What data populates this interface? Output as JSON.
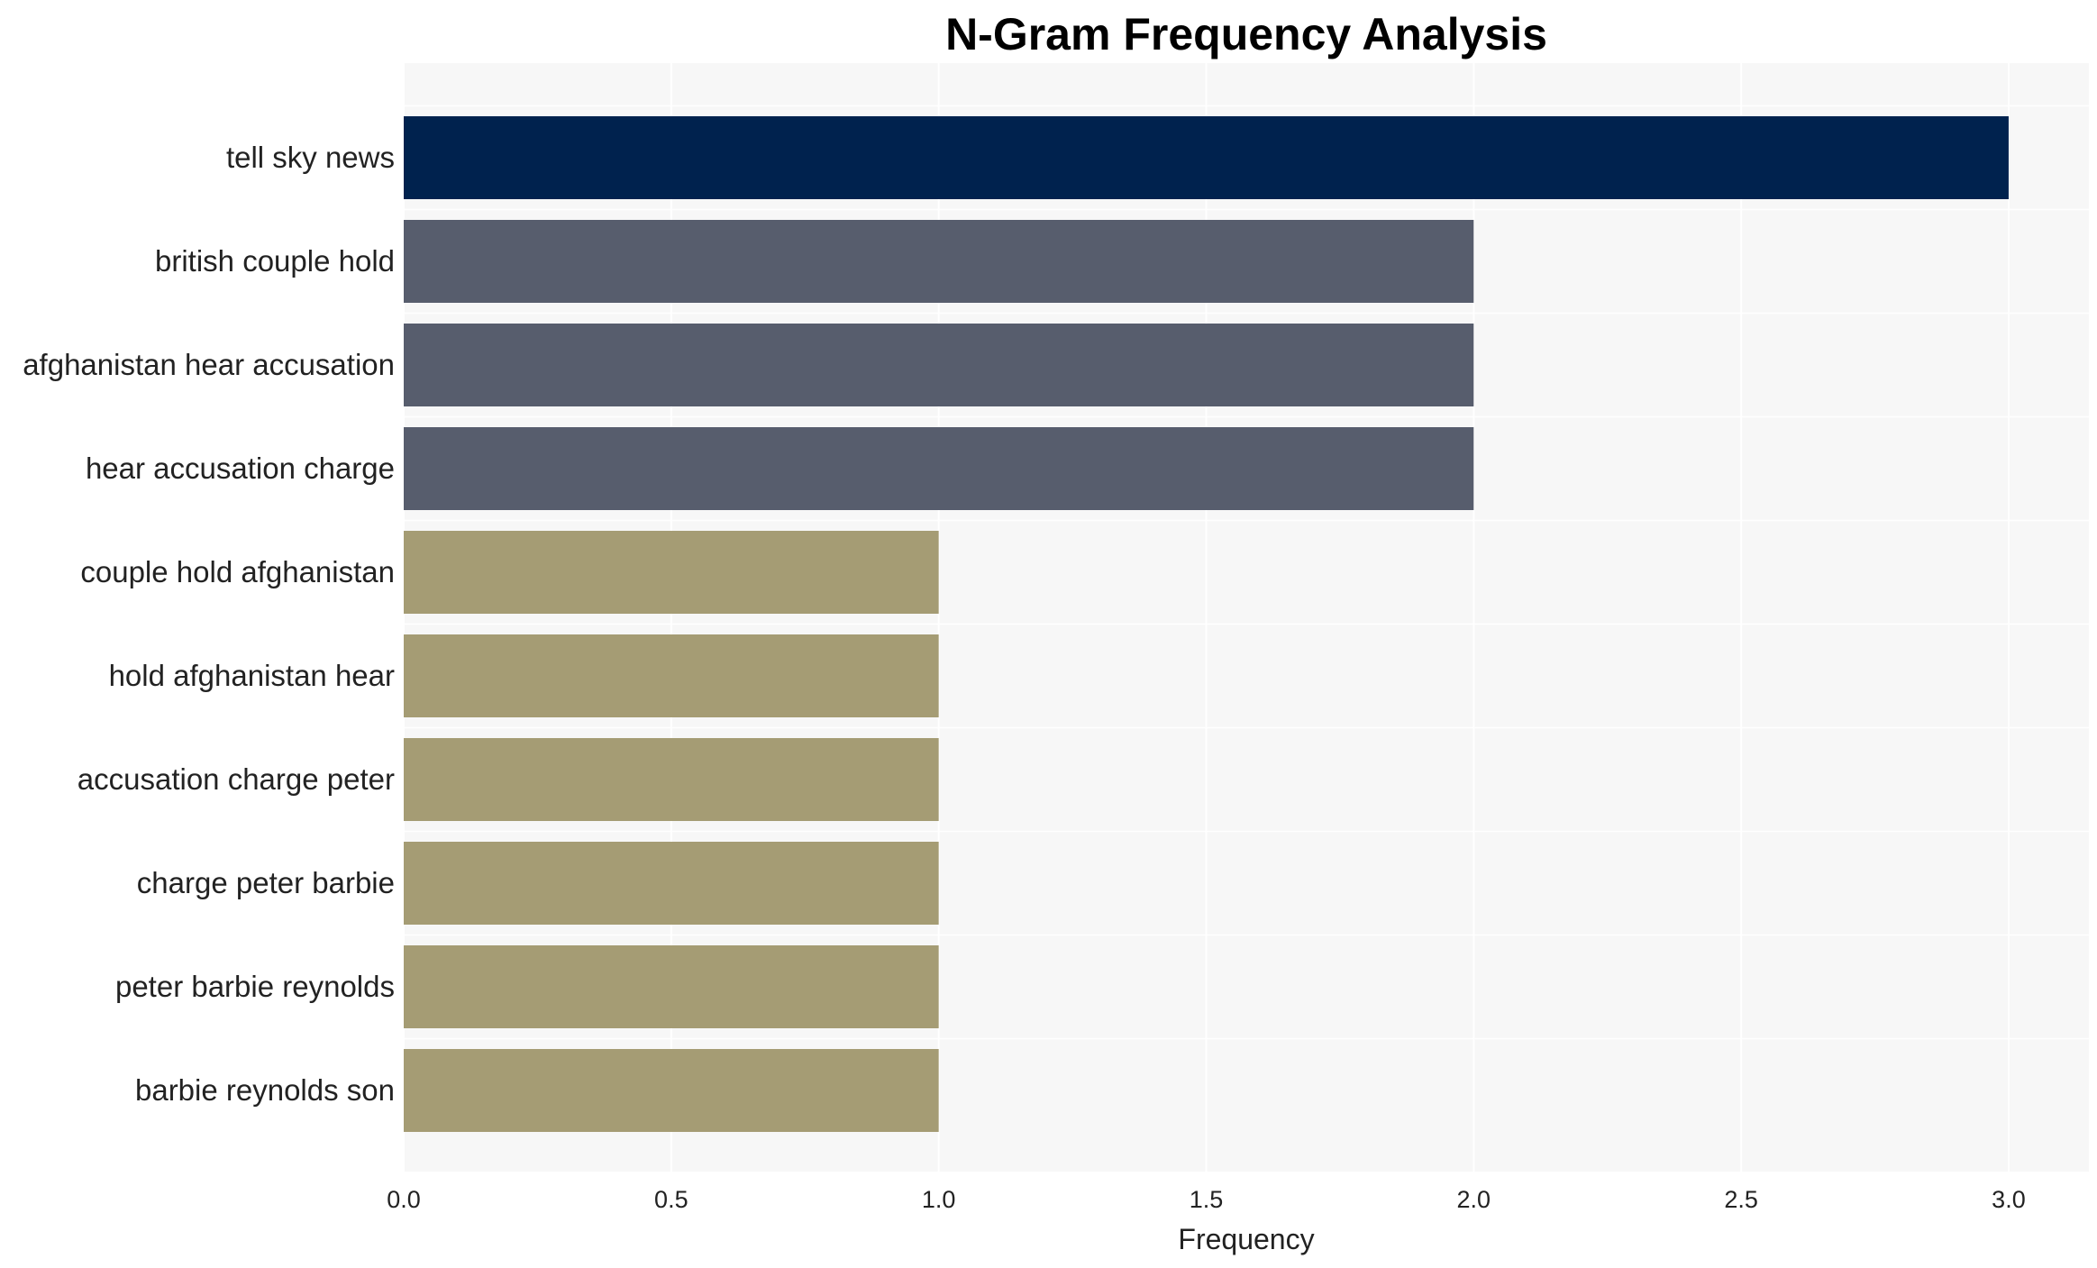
{
  "chart_data": {
    "type": "bar",
    "orientation": "horizontal",
    "title": "N-Gram Frequency Analysis",
    "xlabel": "Frequency",
    "ylabel": "",
    "xlim": [
      0,
      3.15
    ],
    "x_ticks": [
      "0.0",
      "0.5",
      "1.0",
      "1.5",
      "2.0",
      "2.5",
      "3.0"
    ],
    "x_tick_values": [
      0,
      0.5,
      1.0,
      1.5,
      2.0,
      2.5,
      3.0
    ],
    "grid": true,
    "categories": [
      "tell sky news",
      "british couple hold",
      "afghanistan hear accusation",
      "hear accusation charge",
      "couple hold afghanistan",
      "hold afghanistan hear",
      "accusation charge peter",
      "charge peter barbie",
      "peter barbie reynolds",
      "barbie reynolds son"
    ],
    "values": [
      3,
      2,
      2,
      2,
      1,
      1,
      1,
      1,
      1,
      1
    ],
    "colors": {
      "3": "#00224e",
      "2": "#575d6d",
      "1": "#a59c74"
    },
    "plot_background": "#f7f7f7",
    "grid_color": "#ffffff"
  }
}
